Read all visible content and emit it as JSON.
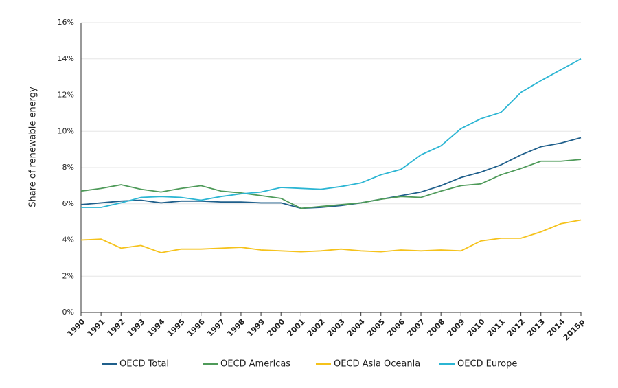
{
  "chart_data": {
    "type": "line",
    "y_label": "Share of renewable energy",
    "categories": [
      "1990",
      "1991",
      "1992",
      "1993",
      "1994",
      "1995",
      "1996",
      "1997",
      "1998",
      "1999",
      "2000",
      "2001",
      "2002",
      "2003",
      "2004",
      "2005",
      "2006",
      "2007",
      "2008",
      "2009",
      "2010",
      "2011",
      "2012",
      "2013",
      "2014",
      "2015p"
    ],
    "series": [
      {
        "name": "OECD Total",
        "color": "#1f5f8b",
        "values": [
          5.95,
          6.05,
          6.15,
          6.2,
          6.05,
          6.15,
          6.15,
          6.1,
          6.1,
          6.05,
          6.05,
          5.75,
          5.8,
          5.9,
          6.05,
          6.25,
          6.45,
          6.65,
          7.0,
          7.45,
          7.75,
          8.15,
          8.7,
          9.15,
          9.35,
          9.65
        ]
      },
      {
        "name": "OECD Americas",
        "color": "#4e9a59",
        "values": [
          6.7,
          6.85,
          7.05,
          6.8,
          6.65,
          6.85,
          7.0,
          6.7,
          6.6,
          6.45,
          6.3,
          5.75,
          5.85,
          5.95,
          6.05,
          6.25,
          6.4,
          6.35,
          6.7,
          7.0,
          7.1,
          7.6,
          7.95,
          8.35,
          8.35,
          8.45
        ]
      },
      {
        "name": "OECD Asia Oceania",
        "color": "#f5c21b",
        "values": [
          4.0,
          4.05,
          3.55,
          3.7,
          3.3,
          3.5,
          3.5,
          3.55,
          3.6,
          3.45,
          3.4,
          3.35,
          3.4,
          3.5,
          3.4,
          3.35,
          3.45,
          3.4,
          3.45,
          3.4,
          3.95,
          4.1,
          4.1,
          4.45,
          4.9,
          5.1
        ]
      },
      {
        "name": "OECD Europe",
        "color": "#2bb5d3",
        "values": [
          5.8,
          5.8,
          6.05,
          6.35,
          6.4,
          6.35,
          6.2,
          6.4,
          6.55,
          6.65,
          6.9,
          6.85,
          6.8,
          6.95,
          7.15,
          7.6,
          7.9,
          8.7,
          9.2,
          10.15,
          10.7,
          11.05,
          12.15,
          12.8,
          13.4,
          14.0
        ]
      }
    ],
    "ylim": [
      0,
      16
    ],
    "yticks": [
      {
        "value": 0,
        "label": "0%"
      },
      {
        "value": 2,
        "label": "2%"
      },
      {
        "value": 4,
        "label": "4%"
      },
      {
        "value": 6,
        "label": "6%"
      },
      {
        "value": 8,
        "label": "8%"
      },
      {
        "value": 10,
        "label": "10%"
      },
      {
        "value": 12,
        "label": "12%"
      },
      {
        "value": 14,
        "label": "14%"
      },
      {
        "value": 16,
        "label": "16%"
      }
    ],
    "grid": true
  }
}
